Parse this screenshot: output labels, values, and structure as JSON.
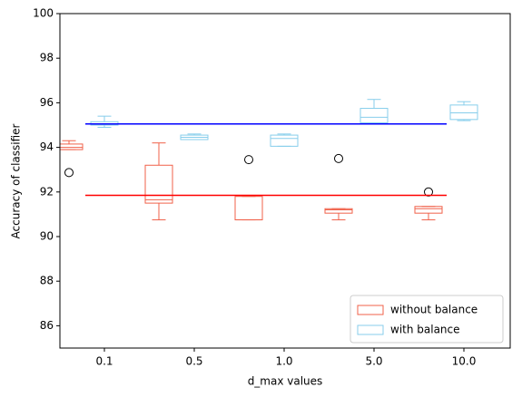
{
  "chart_data": {
    "type": "box",
    "xlabel": "d_max values",
    "ylabel": "Accuracy of classifier",
    "categories": [
      "0.1",
      "0.5",
      "1.0",
      "5.0",
      "10.0"
    ],
    "ylim": [
      85,
      100
    ],
    "yticks": [
      86,
      88,
      90,
      92,
      94,
      96,
      98,
      100
    ],
    "legend": "lower right",
    "series": [
      {
        "name": "without balance",
        "color": "#f0614a",
        "boxes": [
          {
            "whislo": 93.9,
            "q1": 93.9,
            "med": 94.0,
            "q3": 94.15,
            "whishi": 94.3,
            "fliers": [
              92.87
            ]
          },
          {
            "whislo": 90.75,
            "q1": 91.5,
            "med": 91.65,
            "q3": 93.2,
            "whishi": 94.2,
            "fliers": []
          },
          {
            "whislo": 90.75,
            "q1": 90.75,
            "med": 90.75,
            "q3": 91.8,
            "whishi": 91.8,
            "fliers": [
              93.45
            ]
          },
          {
            "whislo": 90.75,
            "q1": 91.05,
            "med": 91.2,
            "q3": 91.25,
            "whishi": 91.25,
            "fliers": [
              93.5
            ]
          },
          {
            "whislo": 90.75,
            "q1": 91.05,
            "med": 91.25,
            "q3": 91.35,
            "whishi": 91.35,
            "fliers": [
              92.0
            ]
          }
        ]
      },
      {
        "name": "with balance",
        "color": "#87ceeb",
        "boxes": [
          {
            "whislo": 94.9,
            "q1": 95.0,
            "med": 95.05,
            "q3": 95.15,
            "whishi": 95.4,
            "fliers": []
          },
          {
            "whislo": 94.35,
            "q1": 94.35,
            "med": 94.45,
            "q3": 94.55,
            "whishi": 94.6,
            "fliers": []
          },
          {
            "whislo": 94.05,
            "q1": 94.05,
            "med": 94.4,
            "q3": 94.55,
            "whishi": 94.6,
            "fliers": []
          },
          {
            "whislo": 95.05,
            "q1": 95.1,
            "med": 95.35,
            "q3": 95.75,
            "whishi": 96.15,
            "fliers": []
          },
          {
            "whislo": 95.2,
            "q1": 95.25,
            "med": 95.55,
            "q3": 95.9,
            "whishi": 96.05,
            "fliers": []
          }
        ]
      }
    ],
    "hlines": [
      {
        "value": 95.05,
        "color": "blue"
      },
      {
        "value": 91.85,
        "color": "red"
      }
    ]
  }
}
